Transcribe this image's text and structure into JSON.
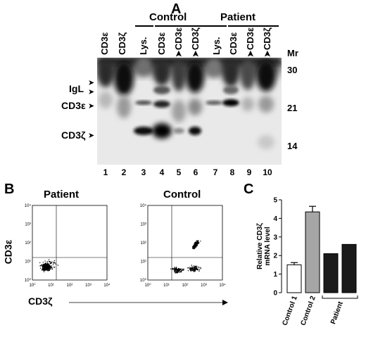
{
  "panel_a": {
    "letter": "A",
    "group_control": "Control",
    "group_patient": "Patient",
    "lane_headers": [
      "CD3ε",
      "CD3ζ",
      "Lys.",
      "CD3ε",
      "➤CD3ε",
      "➤CD3ζ",
      "Lys.",
      "CD3ε",
      "➤CD3ε",
      "➤CD3ζ"
    ],
    "lane_numbers": [
      "1",
      "2",
      "3",
      "4",
      "5",
      "6",
      "7",
      "8",
      "9",
      "10"
    ],
    "mr_label": "Mr",
    "markers": [
      "30",
      "21",
      "14"
    ],
    "band_labels": {
      "igl": "IgL",
      "cd3e": "CD3ε",
      "cd3z": "CD3ζ"
    }
  },
  "panel_b": {
    "letter": "B",
    "title_patient": "Patient",
    "title_control": "Control",
    "y_label": "CD3ε",
    "x_label": "CD3ζ",
    "tick_labels": [
      "10⁰",
      "10¹",
      "10²",
      "10³",
      "10⁴"
    ]
  },
  "panel_c": {
    "letter": "C",
    "chart_data": {
      "type": "bar",
      "categories": [
        "Control 1",
        "Control 2",
        "Patient",
        "Patient"
      ],
      "values": [
        1.5,
        4.35,
        2.1,
        2.6
      ],
      "errors": [
        0.12,
        0.3,
        0,
        0
      ],
      "colors": [
        "#ffffff",
        "#a6a6a6",
        "#1a1a1a",
        "#1a1a1a"
      ],
      "ylabel_line1": "Relative CD3ζ",
      "ylabel_line2": "mRNA level",
      "yticks": [
        "0",
        "1",
        "2",
        "3",
        "4",
        "5"
      ],
      "ylim": [
        0,
        5
      ],
      "x_labels": [
        "Control 1",
        "Control 2"
      ],
      "group_label": "Patient"
    }
  }
}
